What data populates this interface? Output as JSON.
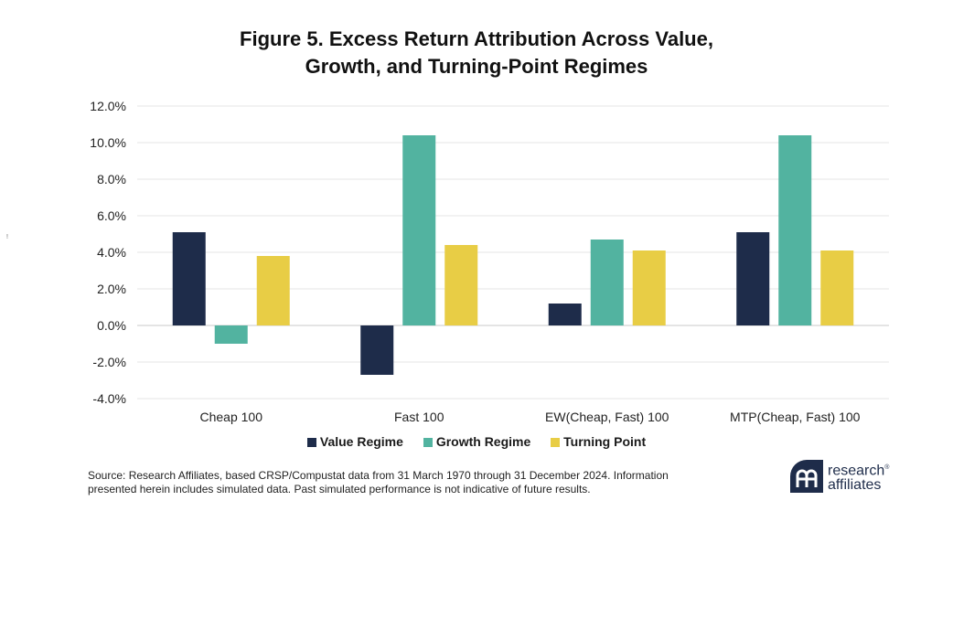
{
  "title_lines": [
    "Figure 5. Excess Return Attribution Across Value,",
    "Growth, and Turning-Point Regimes"
  ],
  "legend": [
    {
      "label": "Value Regime",
      "color": "#1e2c4a"
    },
    {
      "label": "Growth Regime",
      "color": "#52b3a0"
    },
    {
      "label": "Turning Point",
      "color": "#e8cd45"
    }
  ],
  "source": "Source: Research Affiliates, based CRSP/Compustat data from 31 March 1970 through 31 December 2024. Information presented herein includes simulated data. Past simulated performance is not indicative of future results.",
  "logo": {
    "line1": "research",
    "line2": "affiliates",
    "superscript": "®"
  },
  "stray_mark": "!",
  "chart_data": {
    "type": "bar",
    "title": "Figure 5. Excess Return Attribution Across Value, Growth, and Turning-Point Regimes",
    "categories": [
      "Cheap 100",
      "Fast 100",
      "EW(Cheap, Fast) 100",
      "MTP(Cheap, Fast) 100"
    ],
    "series": [
      {
        "name": "Value Regime",
        "color": "#1e2c4a",
        "values": [
          5.1,
          -2.7,
          1.2,
          5.1
        ]
      },
      {
        "name": "Growth Regime",
        "color": "#52b3a0",
        "values": [
          -1.0,
          10.4,
          4.7,
          10.4
        ]
      },
      {
        "name": "Turning Point",
        "color": "#e8cd45",
        "values": [
          3.8,
          4.4,
          4.1,
          4.1
        ]
      }
    ],
    "y_ticks": [
      "12.0%",
      "10.0%",
      "8.0%",
      "6.0%",
      "4.0%",
      "2.0%",
      "0.0%",
      "-2.0%",
      "-4.0%"
    ],
    "ylim": [
      -4,
      12
    ],
    "grid": true,
    "legend_position": "bottom",
    "xlabel": "",
    "ylabel": ""
  }
}
